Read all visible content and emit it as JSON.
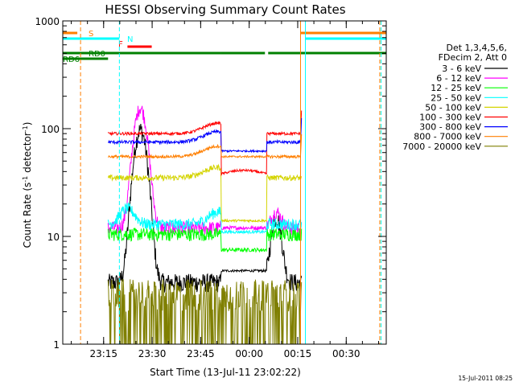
{
  "chart_data": {
    "type": "line",
    "title": "HESSI Observing Summary Count Rates",
    "xlabel": "Start Time (13-Jul-11 23:02:22)",
    "ylabel_main": "Count Rate (s",
    "ylabel_sup1": "-1",
    "ylabel_mid": " detector",
    "ylabel_sup2": "-1",
    "ylabel_end": ")",
    "y_scale": "log",
    "ylim": [
      1,
      1000
    ],
    "xlim_minutes": [
      0,
      100
    ],
    "x_ticks": [
      {
        "label": "23:15",
        "minute": 12.63
      },
      {
        "label": "23:30",
        "minute": 27.63
      },
      {
        "label": "23:45",
        "minute": 42.63
      },
      {
        "label": "00:00",
        "minute": 57.63
      },
      {
        "label": "00:15",
        "minute": 72.63
      },
      {
        "label": "00:30",
        "minute": 87.63
      }
    ],
    "y_ticks": [
      {
        "label": "1",
        "value": 1
      },
      {
        "label": "10",
        "value": 10
      },
      {
        "label": "100",
        "value": 100
      },
      {
        "label": "1000",
        "value": 1000
      }
    ],
    "legend_header": [
      "Det 1,3,4,5,6,",
      "FDecim 2, Att 0"
    ],
    "series": [
      {
        "name": "3 - 6 keV",
        "color": "#000000",
        "key": "s1"
      },
      {
        "name": "6 - 12 keV",
        "color": "#ff00ff",
        "key": "s2"
      },
      {
        "name": "12 - 25 keV",
        "color": "#00ff00",
        "key": "s3"
      },
      {
        "name": "25 - 50 keV",
        "color": "#00ffff",
        "key": "s4"
      },
      {
        "name": "50 - 100 keV",
        "color": "#d4d400",
        "key": "s5"
      },
      {
        "name": "100 - 300 keV",
        "color": "#ff0000",
        "key": "s6"
      },
      {
        "name": "300 - 800 keV",
        "color": "#0000ff",
        "key": "s7"
      },
      {
        "name": "800 - 7000 keV",
        "color": "#ff7f00",
        "key": "s8"
      },
      {
        "name": "7000 - 20000 keV",
        "color": "#7f7f00",
        "key": "s9"
      }
    ],
    "flags": [
      {
        "label": "S",
        "color": "#ff7f00",
        "segments": [
          [
            0,
            4.5
          ],
          [
            73.5,
            100
          ]
        ]
      },
      {
        "label": "N",
        "color": "#00ffff",
        "segments": [
          [
            0,
            17.5
          ],
          [
            75,
            100
          ]
        ]
      },
      {
        "label": "F",
        "color": "#ff0000",
        "segments": [
          [
            20,
            27.5
          ]
        ]
      },
      {
        "label": "RD0",
        "color": "#008000",
        "segments": [
          [
            0,
            49
          ],
          [
            49,
            62.5
          ],
          [
            63.5,
            100
          ]
        ]
      },
      {
        "label": "RD6",
        "color": "#008000",
        "segments": [
          [
            0,
            14
          ]
        ]
      }
    ],
    "vlines": [
      {
        "minute": 5.5,
        "color": "#ff7f00",
        "dash": true
      },
      {
        "minute": 17.5,
        "color": "#00ffff",
        "dash": true
      },
      {
        "minute": 73.5,
        "color": "#ff7f00",
        "dash": false
      },
      {
        "minute": 75,
        "color": "#00ffff",
        "dash": false
      },
      {
        "minute": 98,
        "color": "#ff7f00",
        "dash": true
      },
      {
        "minute": 98.4,
        "color": "#00ffff",
        "dash": true
      }
    ],
    "footer": "15-Jul-2011 08:25"
  }
}
